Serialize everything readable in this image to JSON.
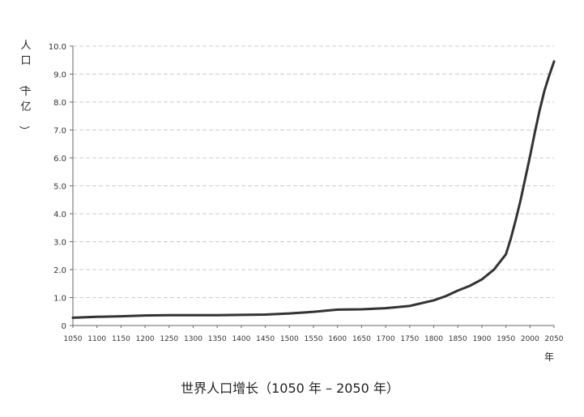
{
  "chart_data": {
    "type": "line",
    "title": "世界人口增长（1050 年 – 2050 年）",
    "ylabel": "人口（十亿）",
    "xunit": "年",
    "xlim": [
      1050,
      2050
    ],
    "ylim": [
      0,
      10
    ],
    "grid": true,
    "legend": "none",
    "x_ticks": [
      1050,
      1100,
      1150,
      1200,
      1250,
      1300,
      1350,
      1400,
      1450,
      1500,
      1550,
      1600,
      1650,
      1700,
      1750,
      1800,
      1850,
      1900,
      1950,
      2000,
      2050
    ],
    "y_ticks": [
      {
        "value": 0,
        "label": "0"
      },
      {
        "value": 1,
        "label": "1.0"
      },
      {
        "value": 2,
        "label": "2.0"
      },
      {
        "value": 3,
        "label": "3.0"
      },
      {
        "value": 4,
        "label": "4.0"
      },
      {
        "value": 5,
        "label": "5.0"
      },
      {
        "value": 6,
        "label": "6.0"
      },
      {
        "value": 7,
        "label": "7.0"
      },
      {
        "value": 8,
        "label": "8.0"
      },
      {
        "value": 9,
        "label": "9.0"
      },
      {
        "value": 10,
        "label": "10.0"
      }
    ],
    "series": [
      {
        "x": [
          1050,
          1100,
          1150,
          1200,
          1250,
          1300,
          1350,
          1400,
          1450,
          1500,
          1550,
          1600,
          1650,
          1700,
          1750,
          1800,
          1825,
          1850,
          1875,
          1900,
          1925,
          1950,
          1960,
          1970,
          1980,
          1990,
          2000,
          2010,
          2020,
          2030,
          2040,
          2050
        ],
        "y": [
          0.28,
          0.31,
          0.33,
          0.36,
          0.37,
          0.37,
          0.37,
          0.38,
          0.39,
          0.43,
          0.49,
          0.57,
          0.58,
          0.62,
          0.7,
          0.9,
          1.05,
          1.25,
          1.42,
          1.65,
          2.0,
          2.55,
          3.1,
          3.75,
          4.45,
          5.25,
          6.05,
          6.9,
          7.7,
          8.4,
          8.95,
          9.45
        ]
      }
    ],
    "colors": {
      "line": "#333333",
      "axis": "#666666",
      "grid": "#bbbbbb"
    }
  }
}
